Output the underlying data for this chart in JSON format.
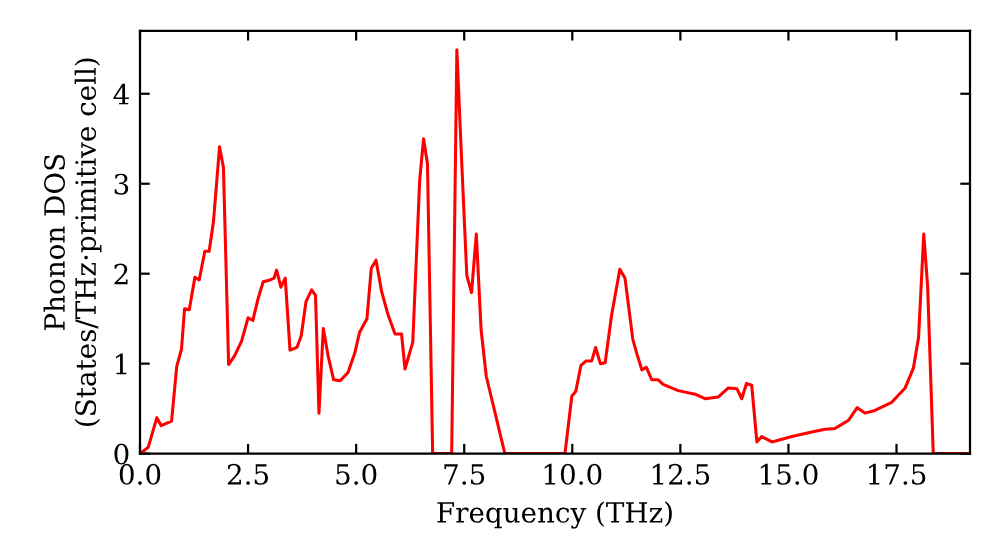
{
  "chart_data": {
    "type": "line",
    "xlabel": "Frequency (THz)",
    "ylabel": "Phonon DOS\n(States/THz·primitive cell)",
    "xlim": [
      0,
      19.2
    ],
    "ylim": [
      0,
      4.7
    ],
    "xticks": [
      {
        "value": 0,
        "label": "0.0"
      },
      {
        "value": 2.5,
        "label": "2.5"
      },
      {
        "value": 5,
        "label": "5.0"
      },
      {
        "value": 7.5,
        "label": "7.5"
      },
      {
        "value": 10,
        "label": "10.0"
      },
      {
        "value": 12.5,
        "label": "12.5"
      },
      {
        "value": 15,
        "label": "15.0"
      },
      {
        "value": 17.5,
        "label": "17.5"
      }
    ],
    "yticks": [
      0,
      1,
      2,
      3,
      4
    ],
    "grid": false,
    "legend": false,
    "series": [
      {
        "color": "#ff0000",
        "x": [
          0,
          0.19,
          0.39,
          0.49,
          0.73,
          0.85,
          0.96,
          1.03,
          1.14,
          1.27,
          1.37,
          1.5,
          1.6,
          1.7,
          1.84,
          1.93,
          2.05,
          2.19,
          2.35,
          2.5,
          2.61,
          2.73,
          2.85,
          3.01,
          3.1,
          3.16,
          3.26,
          3.36,
          3.47,
          3.63,
          3.73,
          3.84,
          3.97,
          4.06,
          4.14,
          4.24,
          4.35,
          4.48,
          4.63,
          4.81,
          4.97,
          5.08,
          5.25,
          5.35,
          5.46,
          5.59,
          5.74,
          5.9,
          6.05,
          6.13,
          6.31,
          6.47,
          6.56,
          6.65,
          6.77,
          7.21,
          7.33,
          7.44,
          7.56,
          7.67,
          7.78,
          7.89,
          8.01,
          8.19,
          8.29,
          8.44,
          9.83,
          9.99,
          10.08,
          10.2,
          10.32,
          10.45,
          10.54,
          10.65,
          10.76,
          10.91,
          11.1,
          11.22,
          11.4,
          11.5,
          11.61,
          11.71,
          11.84,
          11.99,
          12.1,
          12.45,
          12.84,
          13.07,
          13.38,
          13.61,
          13.81,
          13.92,
          14.03,
          14.15,
          14.27,
          14.38,
          14.62,
          15.08,
          15.54,
          15.85,
          16.08,
          16.39,
          16.59,
          16.77,
          17.0,
          17.39,
          17.7,
          17.89,
          18.01,
          18.13,
          18.22,
          18.35,
          19.2
        ],
        "values": [
          0,
          0.07,
          0.4,
          0.31,
          0.36,
          0.97,
          1.16,
          1.61,
          1.6,
          1.96,
          1.93,
          2.25,
          2.25,
          2.58,
          3.41,
          3.18,
          0.99,
          1.09,
          1.25,
          1.51,
          1.48,
          1.72,
          1.91,
          1.93,
          1.95,
          2.04,
          1.85,
          1.95,
          1.15,
          1.18,
          1.31,
          1.69,
          1.82,
          1.76,
          0.45,
          1.39,
          1.09,
          0.82,
          0.81,
          0.9,
          1.12,
          1.35,
          1.5,
          2.06,
          2.15,
          1.8,
          1.54,
          1.33,
          1.33,
          0.94,
          1.24,
          3.04,
          3.5,
          3.22,
          0,
          0,
          4.49,
          3.26,
          1.98,
          1.79,
          2.44,
          1.38,
          0.86,
          0.5,
          0.3,
          0,
          0,
          0.64,
          0.69,
          0.98,
          1.03,
          1.03,
          1.18,
          1.0,
          1.01,
          1.54,
          2.05,
          1.95,
          1.27,
          1.1,
          0.93,
          0.96,
          0.82,
          0.82,
          0.77,
          0.7,
          0.66,
          0.61,
          0.63,
          0.73,
          0.72,
          0.61,
          0.78,
          0.76,
          0.13,
          0.19,
          0.13,
          0.19,
          0.24,
          0.27,
          0.28,
          0.37,
          0.51,
          0.45,
          0.48,
          0.57,
          0.73,
          0.95,
          1.29,
          2.44,
          1.86,
          0,
          0
        ]
      }
    ]
  }
}
